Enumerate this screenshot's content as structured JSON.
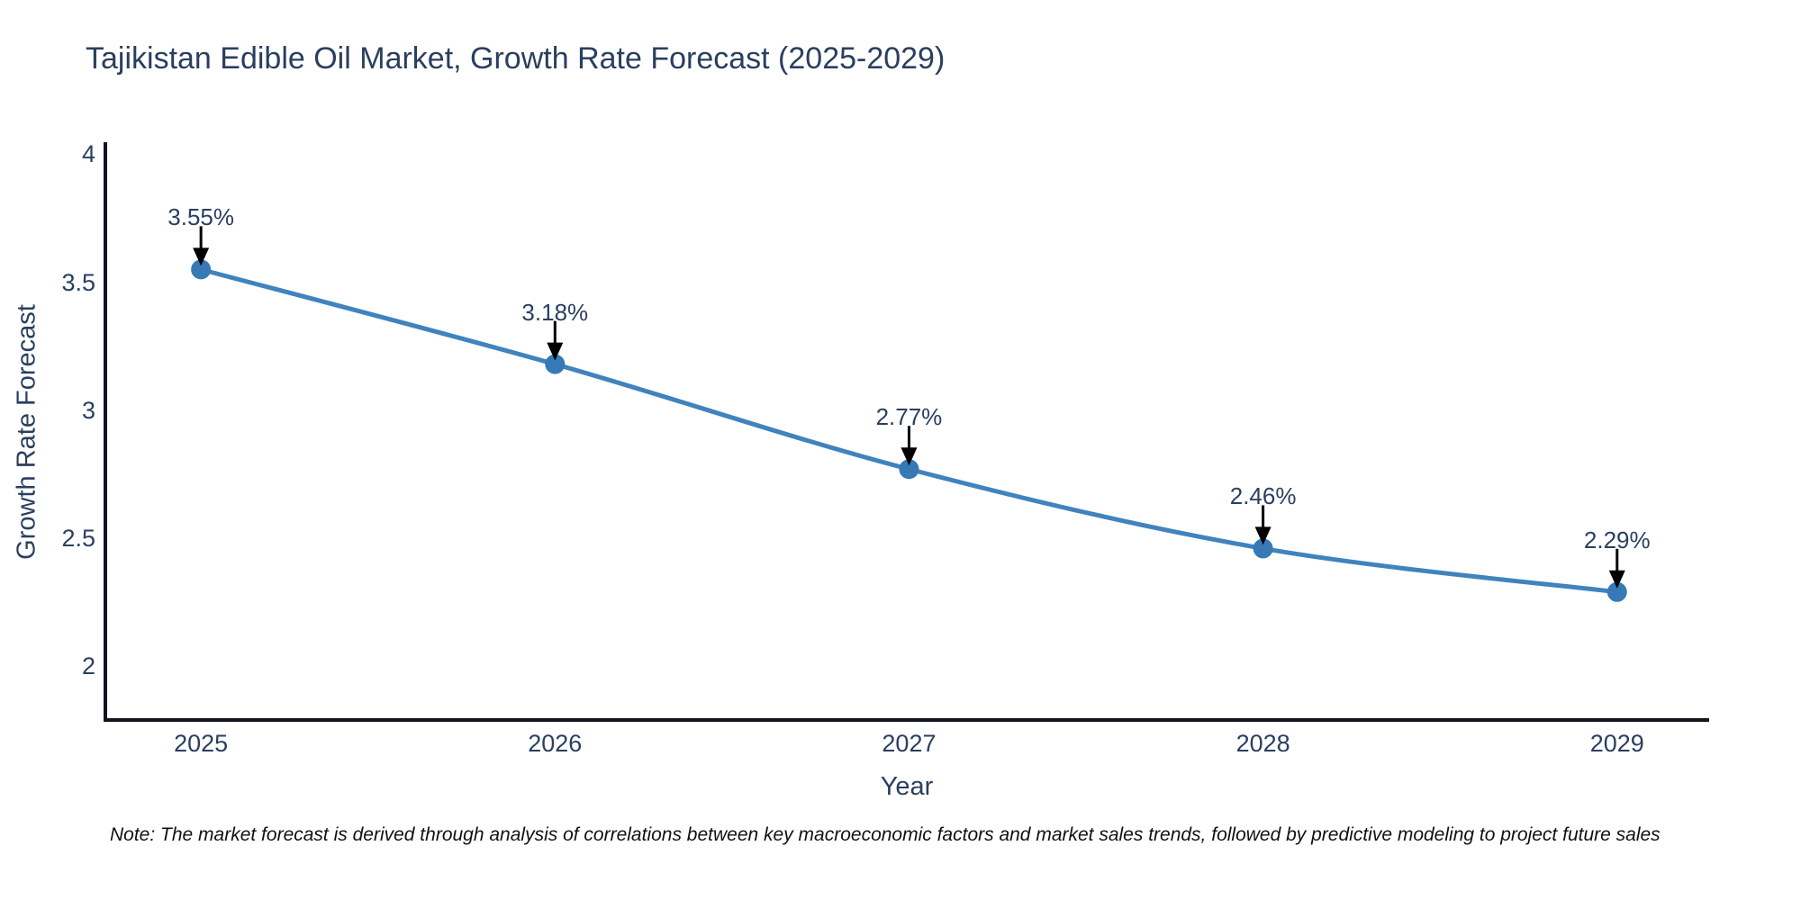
{
  "note": "Note: The market forecast is derived through analysis of correlations between key macroeconomic factors and market sales trends, followed by predictive modeling to project future sales",
  "chart_data": {
    "type": "line",
    "title": "Tajikistan Edible Oil Market, Growth Rate Forecast (2025-2029)",
    "xlabel": "Year",
    "ylabel": "Growth Rate Forecast",
    "x": [
      2025,
      2026,
      2027,
      2028,
      2029
    ],
    "series": [
      {
        "name": "Growth Rate Forecast",
        "values": [
          3.55,
          3.18,
          2.77,
          2.46,
          2.29
        ]
      }
    ],
    "point_labels": [
      "3.55%",
      "3.18%",
      "2.77%",
      "2.46%",
      "2.29%"
    ],
    "xticks": [
      "2025",
      "2026",
      "2027",
      "2028",
      "2029"
    ],
    "yticks": [
      "2",
      "2.5",
      "3",
      "3.5",
      "4"
    ],
    "ytick_values": [
      2,
      2.5,
      3,
      3.5,
      4
    ],
    "xlim": [
      2024.73,
      2029.26
    ],
    "ylim": [
      1.79,
      4.04
    ],
    "grid": false,
    "legend": "none",
    "line_shape": "spline",
    "annotations": "value labels with down arrows above each point",
    "colors": {
      "line": "#4083bd",
      "marker": "#3679b5",
      "arrow": "#000000",
      "axis": "#13131f",
      "text": "#2a3f5f",
      "note_text": "#111111",
      "background": "#ffffff"
    }
  }
}
